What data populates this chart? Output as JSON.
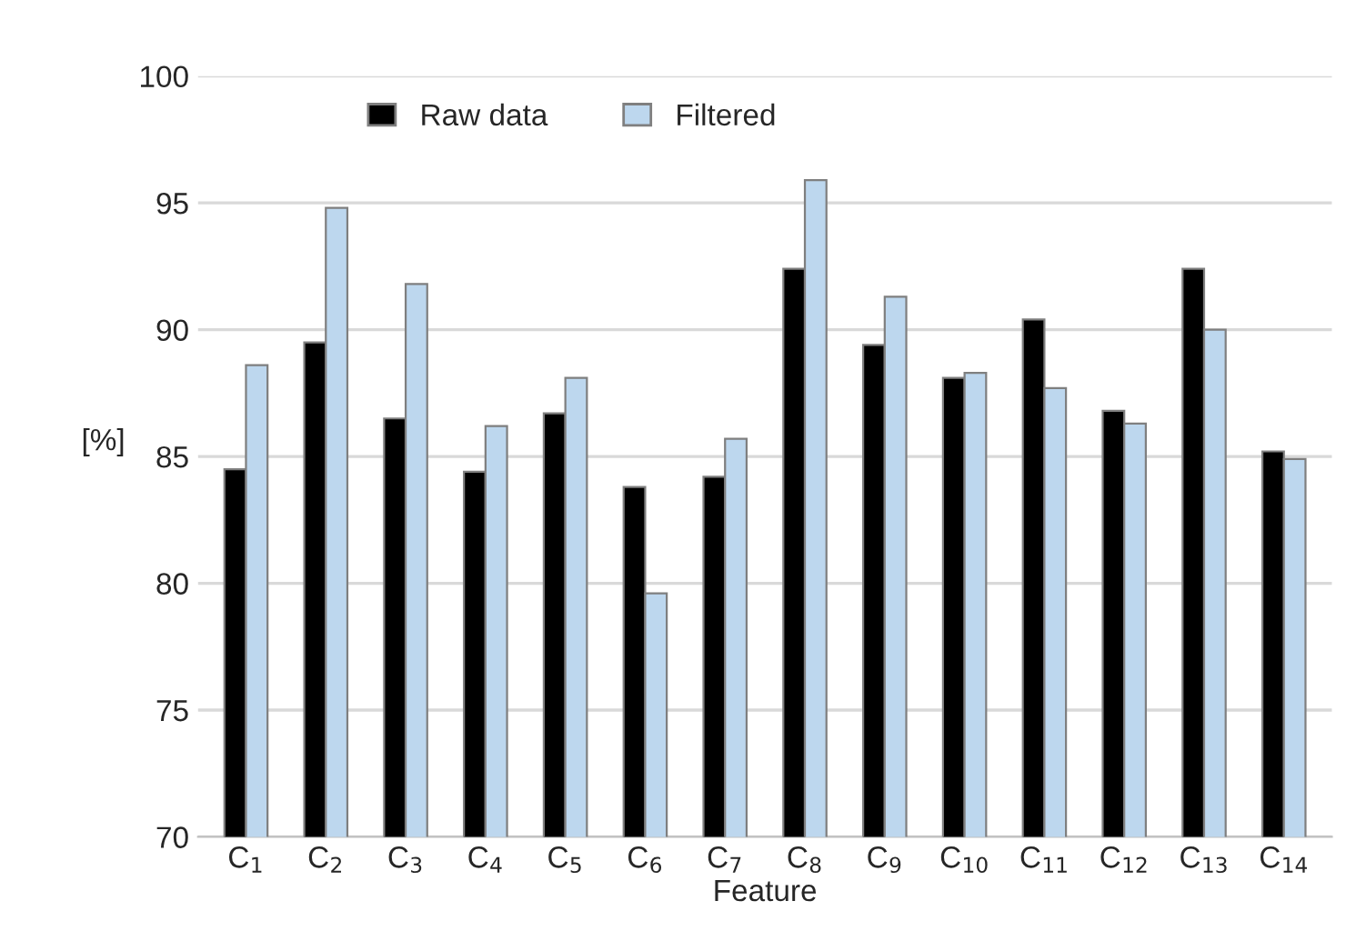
{
  "chart_data": {
    "type": "bar",
    "xlabel": "Feature",
    "ylabel": "[%]",
    "categories": [
      "C$_{1}$",
      "C$_{2}$",
      "C$_{3}$",
      "C$_{4}$",
      "C$_{5}$",
      "C$_{6}$",
      "C$_{7}$",
      "C$_{8}$",
      "C$_{9}$",
      "C$_{10}$",
      "C$_{11}$",
      "C$_{12}$",
      "C$_{13}$",
      "C$_{14}$"
    ],
    "series": [
      {
        "name": "Raw data",
        "color": "#000000",
        "values": [
          84.5,
          89.5,
          86.5,
          84.4,
          86.7,
          83.8,
          84.2,
          92.4,
          89.4,
          88.1,
          90.4,
          86.8,
          92.4,
          85.2
        ]
      },
      {
        "name": "Filtered",
        "color": "#bdd7ee",
        "values": [
          88.6,
          94.8,
          91.8,
          86.2,
          88.1,
          79.6,
          85.7,
          95.9,
          91.3,
          88.3,
          87.7,
          86.3,
          90.0,
          84.9
        ]
      }
    ],
    "ylim": [
      70,
      100
    ],
    "yticks": [
      70,
      75,
      80,
      85,
      90,
      95,
      100
    ],
    "grid": "y",
    "legend": "top"
  }
}
